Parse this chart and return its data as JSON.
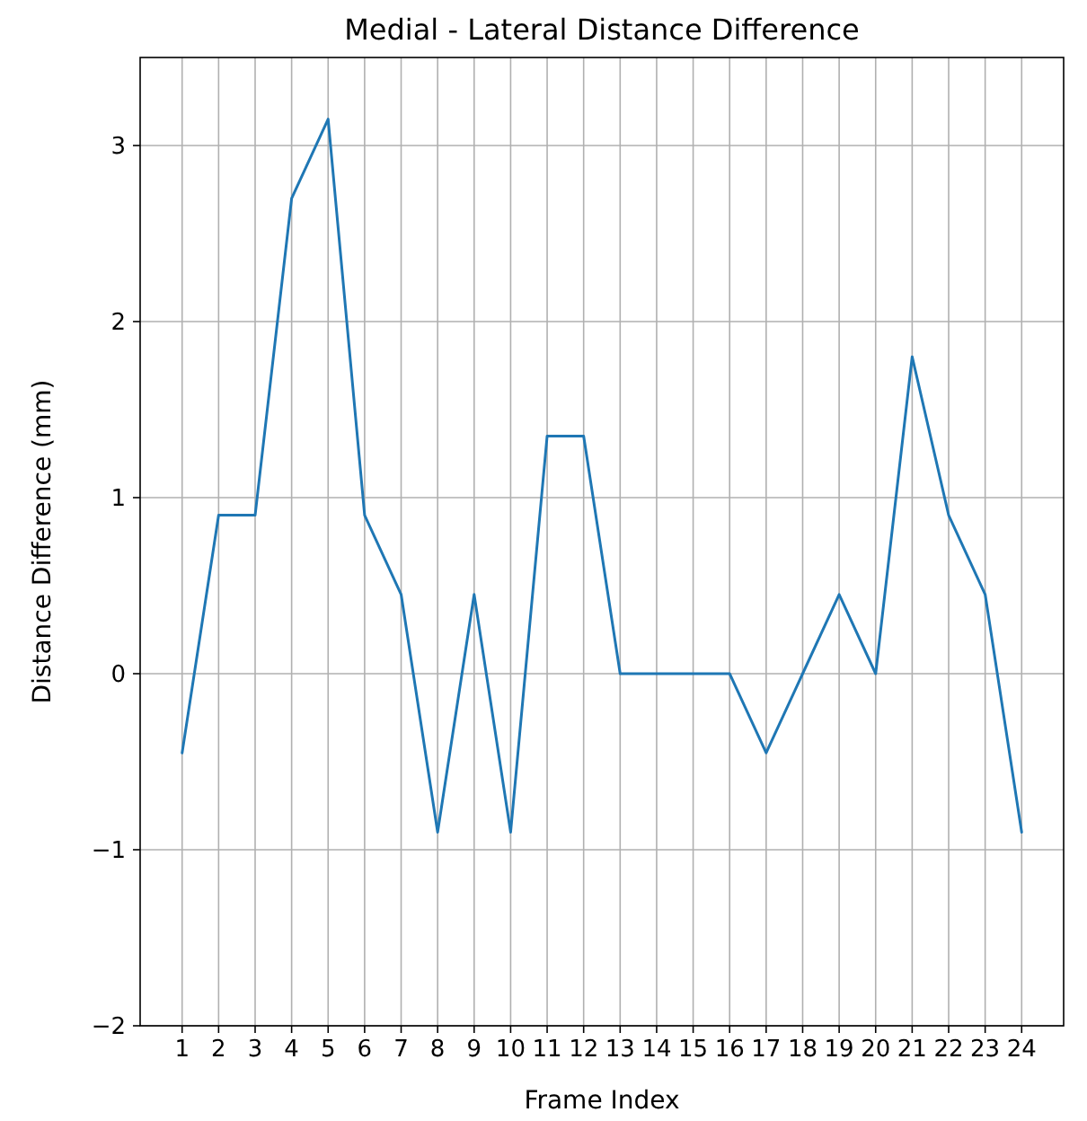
{
  "chart_data": {
    "type": "line",
    "title": "Medial - Lateral Distance Difference",
    "xlabel": "Frame Index",
    "ylabel": "Distance Difference (mm)",
    "x": [
      1,
      2,
      3,
      4,
      5,
      6,
      7,
      8,
      9,
      10,
      11,
      12,
      13,
      14,
      15,
      16,
      17,
      18,
      19,
      20,
      21,
      22,
      23,
      24
    ],
    "series": [
      {
        "color": "#1f77b4",
        "values": [
          -0.45,
          0.9,
          0.9,
          2.7,
          3.15,
          0.9,
          0.45,
          -0.9,
          0.45,
          -0.9,
          1.35,
          1.35,
          0,
          0,
          0,
          0,
          -0.45,
          0,
          0.45,
          0,
          1.8,
          0.9,
          0.45,
          -0.9
        ]
      }
    ],
    "xlim": [
      -0.15,
      25.15
    ],
    "xticks": [
      1,
      2,
      3,
      4,
      5,
      6,
      7,
      8,
      9,
      10,
      11,
      12,
      13,
      14,
      15,
      16,
      17,
      18,
      19,
      20,
      21,
      22,
      23,
      24
    ],
    "ylim": [
      -2,
      3.5
    ],
    "yticks": [
      -2,
      -1,
      0,
      1,
      2,
      3
    ],
    "grid": true,
    "line_style": "solid"
  }
}
